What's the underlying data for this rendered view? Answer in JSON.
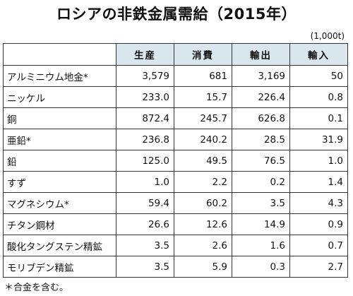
{
  "title": "ロシアの非鉄金属需給（2015年）",
  "unit": "(1,000t)",
  "table": {
    "columns": [
      "生産",
      "消費",
      "輸出",
      "輸入"
    ],
    "rows": [
      {
        "name": "アルミニウム地金*",
        "values": [
          "3,579",
          "681",
          "3,169",
          "50"
        ]
      },
      {
        "name": "ニッケル",
        "values": [
          "233.0",
          "15.7",
          "226.4",
          "0.8"
        ]
      },
      {
        "name": "銅",
        "values": [
          "872.4",
          "245.7",
          "626.8",
          "0.1"
        ]
      },
      {
        "name": "亜鉛*",
        "values": [
          "236.8",
          "240.2",
          "28.5",
          "31.9"
        ]
      },
      {
        "name": "鉛",
        "values": [
          "125.0",
          "49.5",
          "76.5",
          "1.0"
        ]
      },
      {
        "name": "すず",
        "values": [
          "1.0",
          "2.2",
          "0.2",
          "1.4"
        ]
      },
      {
        "name": "マグネシウム*",
        "values": [
          "59.4",
          "60.2",
          "3.5",
          "4.3"
        ]
      },
      {
        "name": "チタン鋼材",
        "values": [
          "26.6",
          "12.6",
          "14.9",
          "0.9"
        ]
      },
      {
        "name": "酸化タングステン精鉱",
        "values": [
          "3.5",
          "2.6",
          "1.6",
          "0.7"
        ]
      },
      {
        "name": "モリブデン精鉱",
        "values": [
          "3.5",
          "5.9",
          "0.3",
          "2.7"
        ]
      }
    ]
  },
  "footnote": "＊合金を含む。",
  "colors": {
    "header_bg": "#d9e6ee",
    "border": "#333333",
    "text": "#111111"
  }
}
